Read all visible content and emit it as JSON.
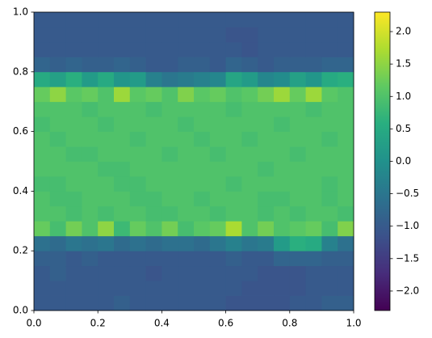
{
  "chart_data": {
    "type": "heatmap",
    "colormap": "viridis",
    "x": [
      0,
      0.05,
      0.1,
      0.15,
      0.2,
      0.25,
      0.3,
      0.35,
      0.4,
      0.45,
      0.5,
      0.55,
      0.6,
      0.65,
      0.7,
      0.75,
      0.8,
      0.85,
      0.9,
      0.95,
      1
    ],
    "y": [
      0,
      0.05,
      0.1,
      0.15,
      0.2,
      0.25,
      0.3,
      0.35,
      0.4,
      0.45,
      0.5,
      0.55,
      0.6,
      0.65,
      0.7,
      0.75,
      0.8,
      0.85,
      0.9,
      0.95,
      1
    ],
    "values": [
      [
        -1.0,
        -1.0,
        -1.0,
        -1.0,
        -1.0,
        -0.9,
        -1.0,
        -1.0,
        -1.0,
        -1.0,
        -1.0,
        -1.0,
        -1.1,
        -1.1,
        -1.1,
        -1.1,
        -1.0,
        -1.0,
        -0.9,
        -0.9
      ],
      [
        -1.0,
        -1.0,
        -1.0,
        -1.0,
        -1.0,
        -1.0,
        -1.0,
        -1.0,
        -1.0,
        -1.0,
        -1.0,
        -1.0,
        -1.0,
        -1.1,
        -1.1,
        -1.1,
        -1.1,
        -1.0,
        -1.0,
        -1.0
      ],
      [
        -1.0,
        -0.9,
        -1.0,
        -1.0,
        -1.0,
        -1.0,
        -1.0,
        -1.1,
        -1.0,
        -1.0,
        -1.0,
        -1.0,
        -1.0,
        -1.0,
        -1.1,
        -1.1,
        -1.1,
        -1.0,
        -1.0,
        -1.0
      ],
      [
        -0.9,
        -0.9,
        -1.0,
        -0.9,
        -1.0,
        -1.0,
        -1.0,
        -1.0,
        -1.0,
        -1.0,
        -1.0,
        -1.0,
        -0.9,
        -1.0,
        -1.0,
        -0.8,
        -0.8,
        -0.8,
        -0.9,
        -0.9
      ],
      [
        -0.6,
        -0.7,
        -0.5,
        -0.6,
        -0.5,
        -0.7,
        -0.6,
        -0.7,
        -0.6,
        -0.6,
        -0.7,
        -0.5,
        -0.3,
        -0.5,
        -0.4,
        0.2,
        0.6,
        0.5,
        -0.3,
        -0.6
      ],
      [
        1.2,
        0.9,
        1.3,
        1.0,
        1.5,
        0.8,
        1.2,
        1.0,
        1.3,
        0.9,
        1.1,
        1.2,
        1.7,
        1.0,
        1.3,
        1.0,
        1.1,
        1.2,
        0.9,
        1.4
      ],
      [
        1.0,
        1.0,
        0.9,
        1.0,
        0.9,
        1.0,
        1.0,
        0.9,
        0.9,
        1.0,
        1.0,
        0.9,
        1.0,
        1.0,
        0.9,
        1.0,
        0.9,
        1.0,
        1.0,
        0.9
      ],
      [
        1.0,
        0.9,
        0.9,
        1.0,
        1.0,
        1.0,
        0.9,
        0.9,
        1.0,
        1.0,
        0.9,
        1.0,
        1.0,
        1.0,
        0.9,
        0.9,
        1.0,
        1.0,
        0.9,
        1.0
      ],
      [
        0.9,
        0.9,
        1.0,
        1.0,
        1.0,
        0.9,
        0.9,
        1.0,
        1.0,
        1.0,
        1.0,
        1.0,
        0.9,
        1.0,
        1.0,
        1.0,
        1.0,
        1.0,
        0.9,
        1.0
      ],
      [
        1.0,
        1.0,
        1.0,
        1.0,
        0.9,
        0.9,
        1.0,
        1.0,
        1.0,
        1.0,
        1.0,
        1.0,
        1.0,
        1.0,
        0.9,
        1.0,
        1.0,
        1.0,
        1.0,
        1.0
      ],
      [
        1.0,
        1.0,
        0.9,
        0.9,
        1.0,
        1.0,
        1.0,
        1.0,
        0.9,
        1.0,
        1.0,
        0.9,
        1.0,
        1.0,
        1.0,
        1.0,
        0.9,
        1.0,
        1.0,
        1.0
      ],
      [
        1.0,
        0.9,
        1.0,
        1.0,
        1.0,
        1.0,
        0.9,
        1.0,
        1.0,
        1.0,
        0.9,
        1.0,
        1.0,
        0.9,
        1.0,
        1.0,
        1.0,
        1.0,
        0.9,
        1.0
      ],
      [
        0.9,
        1.0,
        1.0,
        1.0,
        0.9,
        1.0,
        1.0,
        1.0,
        1.0,
        0.9,
        1.0,
        1.0,
        1.0,
        1.0,
        1.0,
        0.9,
        1.0,
        1.0,
        1.0,
        1.0
      ],
      [
        1.0,
        1.0,
        1.0,
        0.9,
        1.0,
        1.0,
        1.0,
        0.9,
        1.0,
        1.0,
        1.0,
        1.0,
        0.9,
        1.0,
        1.0,
        1.0,
        1.0,
        0.9,
        1.0,
        1.0
      ],
      [
        1.2,
        1.5,
        1.1,
        1.2,
        1.0,
        1.6,
        1.1,
        1.2,
        1.0,
        1.4,
        1.1,
        1.2,
        1.0,
        1.1,
        1.3,
        1.6,
        1.2,
        1.6,
        1.1,
        1.0
      ],
      [
        0.5,
        0.3,
        0.6,
        0.2,
        0.5,
        0.1,
        0.2,
        -0.3,
        -0.5,
        -0.4,
        -0.3,
        -0.2,
        0.4,
        0.2,
        -0.2,
        -0.1,
        0.3,
        0.1,
        0.5,
        0.6
      ],
      [
        -0.8,
        -0.9,
        -0.8,
        -0.9,
        -0.9,
        -0.8,
        -0.9,
        -1.0,
        -1.0,
        -0.9,
        -0.9,
        -1.0,
        -0.8,
        -0.9,
        -1.0,
        -0.9,
        -0.9,
        -0.9,
        -0.8,
        -0.8
      ],
      [
        -1.0,
        -1.0,
        -1.0,
        -1.0,
        -1.0,
        -1.0,
        -1.0,
        -1.0,
        -1.0,
        -1.0,
        -1.0,
        -1.0,
        -1.0,
        -1.1,
        -1.0,
        -1.0,
        -1.0,
        -1.0,
        -1.0,
        -1.0
      ],
      [
        -1.0,
        -1.0,
        -1.0,
        -1.0,
        -1.0,
        -1.0,
        -1.0,
        -1.0,
        -1.0,
        -1.0,
        -1.0,
        -1.0,
        -1.1,
        -1.1,
        -1.0,
        -1.0,
        -1.0,
        -1.0,
        -1.0,
        -1.0
      ],
      [
        -1.0,
        -1.0,
        -1.0,
        -1.0,
        -1.0,
        -1.0,
        -1.0,
        -1.0,
        -1.0,
        -1.0,
        -1.0,
        -1.0,
        -1.0,
        -1.0,
        -1.0,
        -1.0,
        -1.0,
        -1.0,
        -1.0,
        -1.0
      ]
    ],
    "xlim": [
      0,
      1
    ],
    "ylim": [
      0,
      1
    ],
    "xticks": [
      {
        "value": 0,
        "label": "0.0"
      },
      0.2,
      0.4,
      0.6,
      0.8,
      {
        "value": 1,
        "label": "1.0"
      }
    ],
    "yticks": [
      {
        "value": 0,
        "label": "0.0"
      },
      0.2,
      0.4,
      0.6,
      0.8,
      {
        "value": 1,
        "label": "1.0"
      }
    ],
    "clim": [
      -2.3,
      2.3
    ],
    "cticks": [
      {
        "value": -2,
        "label": "−2.0"
      },
      {
        "value": -1.5,
        "label": "−1.5"
      },
      {
        "value": -1,
        "label": "−1.0"
      },
      {
        "value": -0.5,
        "label": "−0.5"
      },
      {
        "value": 0,
        "label": "0.0"
      },
      0.5,
      {
        "value": 1,
        "label": "1.0"
      },
      1.5,
      {
        "value": 2,
        "label": "2.0"
      }
    ]
  }
}
